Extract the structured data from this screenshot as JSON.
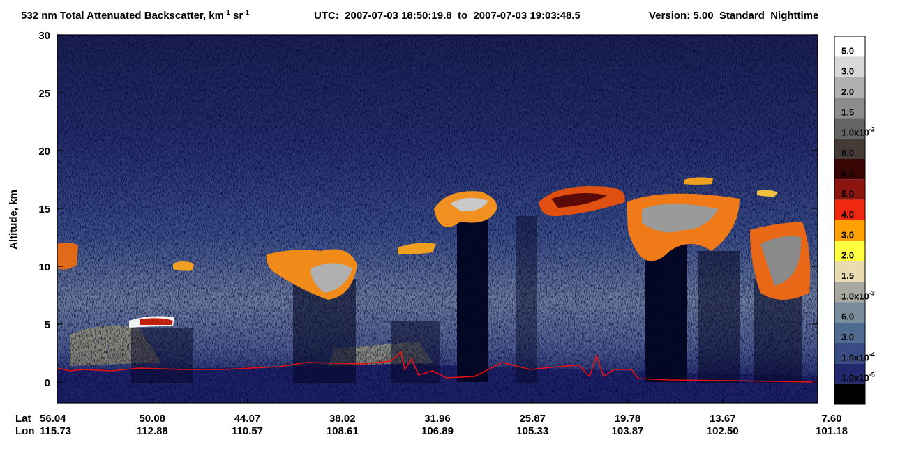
{
  "chart_data": {
    "type": "heatmap",
    "title": {
      "product": "532 nm Total Attenuated Backscatter, km",
      "unit_exp1": "-1",
      "unit_sr": " sr",
      "unit_exp2": "-1",
      "utc": "UTC:  2007-07-03 18:50:19.8  to  2007-07-03 19:03:48.5",
      "version": "Version: 5.00  Standard  Nighttime"
    },
    "y_label": "Altitude, km",
    "ylim": [
      -1.8,
      30
    ],
    "yticks": [
      0,
      5,
      10,
      15,
      20,
      25,
      30
    ],
    "x_row_labels": [
      "Lat",
      "Lon"
    ],
    "lat": [
      "56.04",
      "50.08",
      "44.07",
      "38.02",
      "31.96",
      "25.87",
      "19.78",
      "13.67",
      "7.60"
    ],
    "lon": [
      "115.73",
      "112.88",
      "110.57",
      "108.61",
      "106.89",
      "105.33",
      "103.87",
      "102.50",
      "101.18"
    ],
    "colorbar": {
      "colors": [
        "#ffffff",
        "#d8d8d8",
        "#b0b0b0",
        "#8c8c8c",
        "#646464",
        "#463c37",
        "#3a0505",
        "#8c1510",
        "#f02810",
        "#ffa000",
        "#ffff40",
        "#e8dcb0",
        "#a8a8a0",
        "#788c9c",
        "#506a90",
        "#3a4c84",
        "#22286e",
        "#000000"
      ],
      "labels": [
        {
          "base": "5.0"
        },
        {
          "base": "3.0"
        },
        {
          "base": "2.0"
        },
        {
          "base": "1.5"
        },
        {
          "base": "1.0x10",
          "exp": "-2"
        },
        {
          "base": "8.0"
        },
        {
          "base": "6.0"
        },
        {
          "base": "5.0"
        },
        {
          "base": "4.0"
        },
        {
          "base": "3.0"
        },
        {
          "base": "2.0"
        },
        {
          "base": "1.5"
        },
        {
          "base": "1.0x10",
          "exp": "-3"
        },
        {
          "base": "6.0"
        },
        {
          "base": "3.0"
        },
        {
          "base": "1.0x10",
          "exp": "-4"
        },
        {
          "base": "1.0x10",
          "exp": "-5"
        }
      ]
    }
  }
}
